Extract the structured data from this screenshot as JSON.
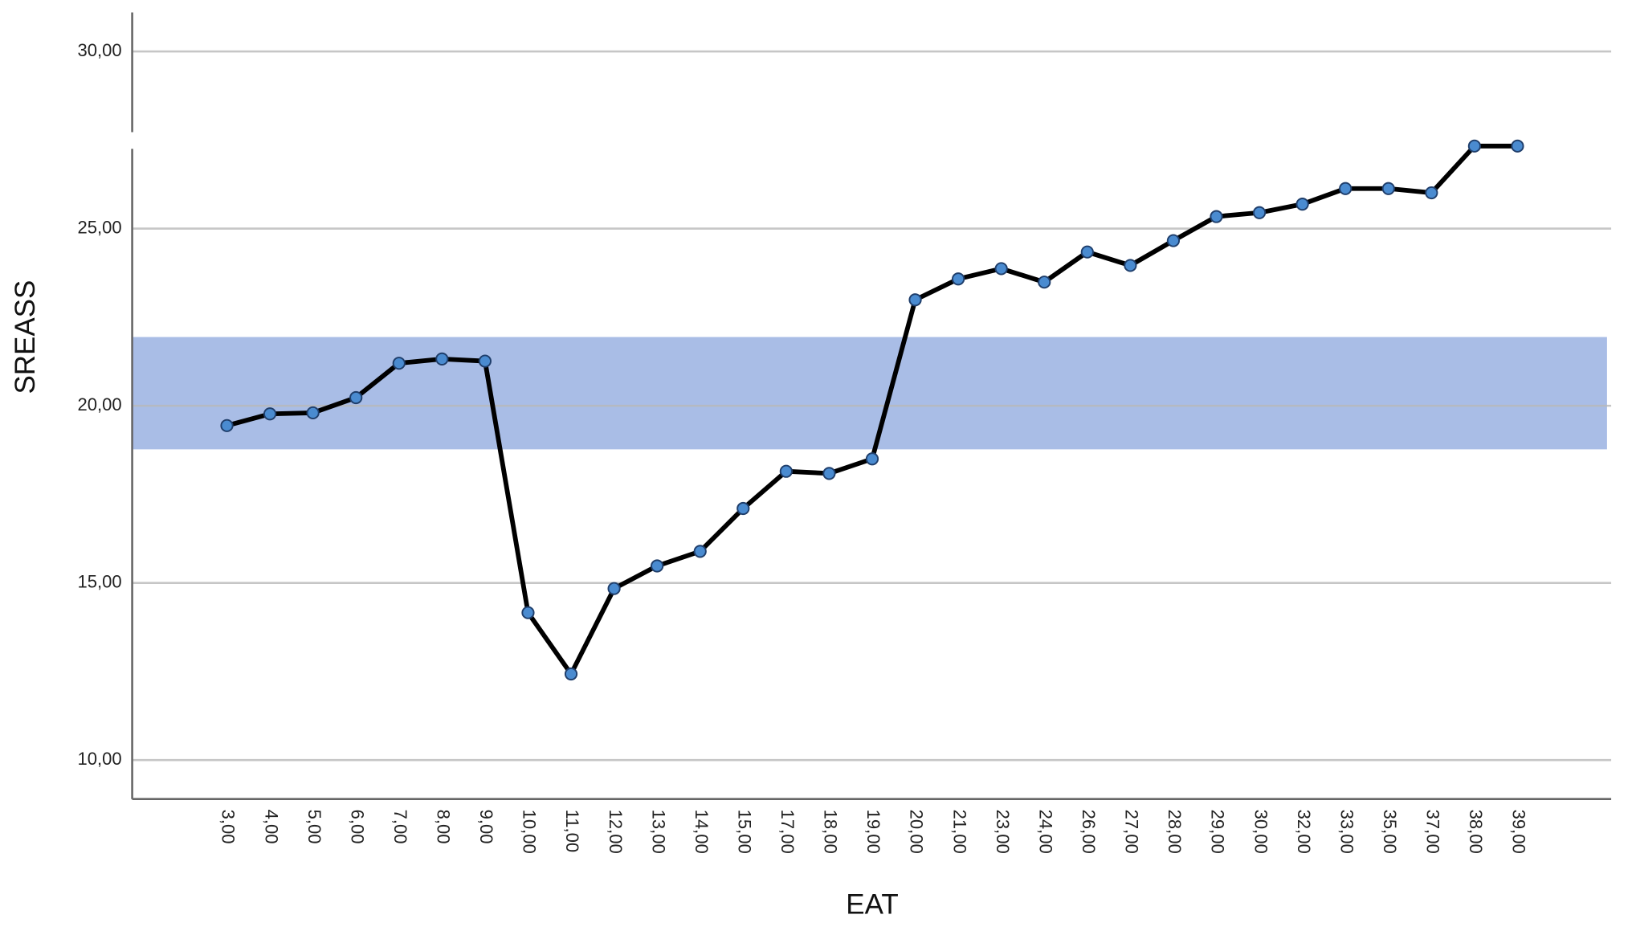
{
  "chart_data": {
    "type": "line",
    "x_label": "EAT",
    "y_label": "SREASS",
    "categories": [
      "3,00",
      "4,00",
      "5,00",
      "6,00",
      "7,00",
      "8,00",
      "9,00",
      "10,00",
      "11,00",
      "12,00",
      "13,00",
      "14,00",
      "15,00",
      "17,00",
      "18,00",
      "19,00",
      "20,00",
      "21,00",
      "23,00",
      "24,00",
      "26,00",
      "27,00",
      "28,00",
      "29,00",
      "30,00",
      "32,00",
      "33,00",
      "35,00",
      "37,00",
      "38,00",
      "39,00"
    ],
    "values": [
      19.44,
      19.77,
      19.8,
      20.23,
      21.2,
      21.32,
      21.26,
      14.16,
      12.43,
      14.84,
      15.48,
      15.89,
      17.1,
      18.15,
      18.09,
      18.5,
      22.99,
      23.58,
      23.87,
      23.49,
      24.34,
      23.96,
      24.66,
      25.34,
      25.45,
      25.69,
      26.13,
      26.13,
      26.01,
      27.33,
      27.33
    ],
    "color": "#000000",
    "marker_color": "#4a8bd0",
    "reference_band": [
      18.77,
      21.94
    ],
    "band_color": "#a9bde6",
    "ylim": [
      8.9,
      31.1
    ],
    "yticks": [
      {
        "value": 10,
        "label": "10,00"
      },
      {
        "value": 15,
        "label": "15,00"
      },
      {
        "value": 20,
        "label": "20,00"
      },
      {
        "value": 25,
        "label": "25,00"
      },
      {
        "value": 30,
        "label": "30,00"
      }
    ],
    "grid": true
  }
}
